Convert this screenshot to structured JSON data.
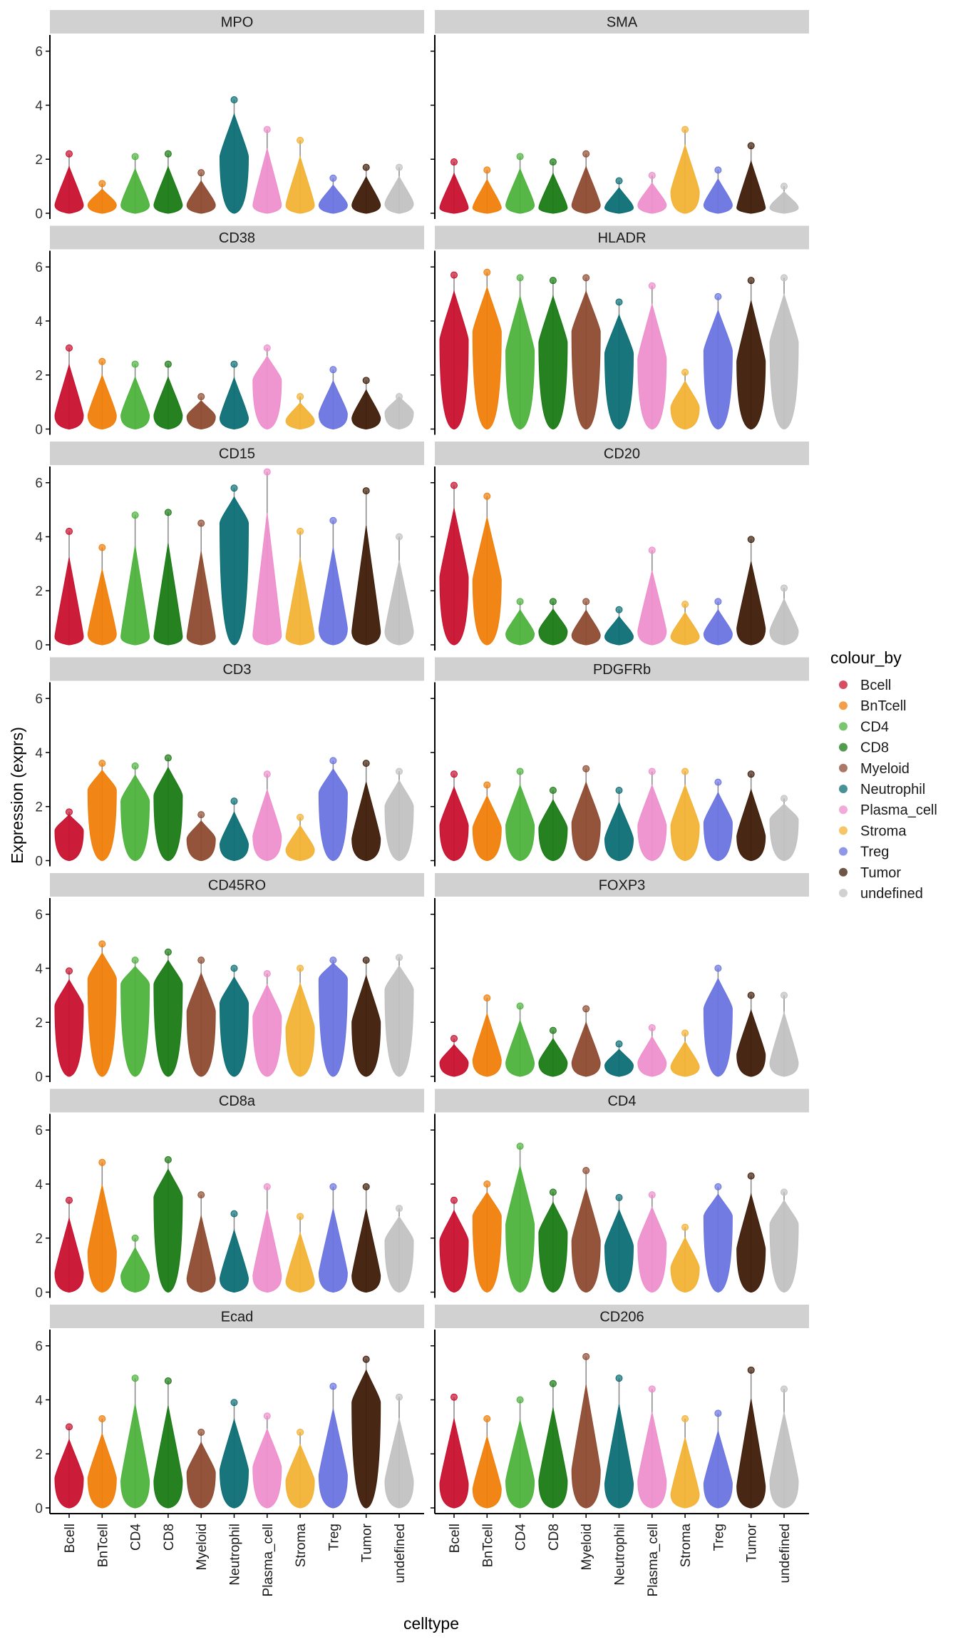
{
  "chart_data": {
    "type": "violin",
    "xlabel": "celltype",
    "ylabel": "Expression (exprs)",
    "legend_title": "colour_by",
    "legend_position": "right",
    "grid": false,
    "ylim": [
      0,
      6.6
    ],
    "y_ticks": [
      0,
      2,
      4,
      6
    ],
    "categories": [
      "Bcell",
      "BnTcell",
      "CD4",
      "CD8",
      "Myeloid",
      "Neutrophil",
      "Plasma_cell",
      "Stroma",
      "Treg",
      "Tumor",
      "undefined"
    ],
    "colors": [
      "#C8102E",
      "#F07F09",
      "#4DB33D",
      "#1A7A14",
      "#8E4B30",
      "#0B6E74",
      "#EE8FCC",
      "#F2B234",
      "#6A74E0",
      "#3E1C08",
      "#C2C2C2"
    ],
    "panels": [
      {
        "marker": "MPO",
        "medians": [
          0.3,
          0.3,
          0.3,
          0.3,
          0.3,
          2.1,
          0.3,
          0.3,
          0.3,
          0.3,
          0.35
        ],
        "maxima": [
          2.2,
          1.1,
          2.1,
          2.2,
          1.5,
          4.2,
          3.1,
          2.7,
          1.3,
          1.7,
          1.7
        ]
      },
      {
        "marker": "SMA",
        "medians": [
          0.2,
          0.2,
          0.3,
          0.2,
          0.3,
          0.2,
          0.3,
          0.8,
          0.3,
          0.2,
          0.2
        ],
        "maxima": [
          1.9,
          1.6,
          2.1,
          1.9,
          2.2,
          1.2,
          1.4,
          3.1,
          1.6,
          2.5,
          1.0
        ]
      },
      {
        "marker": "CD38",
        "medians": [
          0.5,
          0.5,
          0.5,
          0.5,
          0.45,
          0.4,
          1.8,
          0.3,
          0.55,
          0.4,
          0.6
        ],
        "maxima": [
          3.0,
          2.5,
          2.4,
          2.4,
          1.2,
          2.4,
          3.0,
          1.2,
          2.2,
          1.8,
          1.2
        ]
      },
      {
        "marker": "HLADR",
        "medians": [
          3.3,
          3.6,
          2.9,
          3.2,
          3.6,
          2.8,
          2.6,
          0.8,
          2.9,
          2.5,
          3.2
        ],
        "maxima": [
          5.7,
          5.8,
          5.6,
          5.5,
          5.6,
          4.7,
          5.3,
          2.1,
          4.9,
          5.5,
          5.6
        ]
      },
      {
        "marker": "CD15",
        "medians": [
          0.3,
          0.4,
          0.3,
          0.3,
          0.3,
          4.5,
          0.35,
          0.3,
          0.6,
          0.5,
          0.5
        ],
        "maxima": [
          4.2,
          3.6,
          4.8,
          4.9,
          4.5,
          5.8,
          6.4,
          4.2,
          4.6,
          5.7,
          4.0
        ]
      },
      {
        "marker": "CD20",
        "medians": [
          2.5,
          2.4,
          0.4,
          0.5,
          0.35,
          0.3,
          0.5,
          0.3,
          0.4,
          0.6,
          0.5
        ],
        "maxima": [
          5.9,
          5.5,
          1.6,
          1.6,
          1.6,
          1.3,
          3.5,
          1.5,
          1.6,
          3.9,
          2.1
        ]
      },
      {
        "marker": "CD3",
        "medians": [
          1.1,
          2.6,
          2.2,
          2.4,
          0.8,
          0.6,
          0.9,
          0.4,
          2.5,
          0.8,
          2.0
        ],
        "maxima": [
          1.8,
          3.6,
          3.5,
          3.8,
          1.7,
          2.2,
          3.2,
          1.6,
          3.7,
          3.6,
          3.3
        ]
      },
      {
        "marker": "PDGFRb",
        "medians": [
          1.3,
          1.2,
          1.3,
          1.2,
          1.4,
          0.8,
          1.3,
          1.3,
          1.4,
          0.9,
          1.5
        ],
        "maxima": [
          3.2,
          2.8,
          3.3,
          2.6,
          3.4,
          2.6,
          3.3,
          3.3,
          2.9,
          3.2,
          2.3
        ]
      },
      {
        "marker": "CD45RO",
        "medians": [
          2.6,
          3.6,
          3.4,
          3.4,
          2.4,
          2.7,
          2.2,
          1.8,
          3.6,
          2.0,
          3.2
        ],
        "maxima": [
          3.9,
          4.9,
          4.3,
          4.6,
          4.3,
          4.0,
          3.8,
          4.0,
          4.3,
          4.3,
          4.4
        ]
      },
      {
        "marker": "FOXP3",
        "medians": [
          0.5,
          0.6,
          0.5,
          0.5,
          0.5,
          0.4,
          0.5,
          0.35,
          2.5,
          0.8,
          0.5
        ],
        "maxima": [
          1.4,
          2.9,
          2.6,
          1.7,
          2.5,
          1.2,
          1.8,
          1.6,
          4.0,
          3.0,
          3.0
        ]
      },
      {
        "marker": "CD8a",
        "medians": [
          0.7,
          1.5,
          0.6,
          3.5,
          0.5,
          0.5,
          0.6,
          0.4,
          0.7,
          0.6,
          1.9
        ],
        "maxima": [
          3.4,
          4.8,
          2.0,
          4.9,
          3.6,
          2.9,
          3.9,
          2.8,
          3.9,
          3.9,
          3.1
        ]
      },
      {
        "marker": "CD4",
        "medians": [
          1.9,
          2.8,
          2.5,
          2.2,
          1.9,
          1.7,
          1.8,
          0.9,
          2.8,
          1.6,
          2.5
        ],
        "maxima": [
          3.4,
          4.0,
          5.4,
          3.7,
          4.5,
          3.5,
          3.6,
          2.4,
          3.9,
          4.3,
          3.7
        ]
      },
      {
        "marker": "Ecad",
        "medians": [
          1.1,
          1.1,
          1.0,
          1.0,
          1.3,
          1.4,
          1.5,
          1.0,
          1.2,
          3.9,
          1.0
        ],
        "maxima": [
          3.0,
          3.3,
          4.8,
          4.7,
          2.8,
          3.9,
          3.4,
          2.8,
          4.5,
          5.5,
          4.1
        ]
      },
      {
        "marker": "CD206",
        "medians": [
          0.9,
          0.7,
          1.0,
          1.0,
          1.4,
          0.9,
          1.0,
          0.5,
          0.9,
          0.8,
          1.0
        ],
        "maxima": [
          4.1,
          3.3,
          4.0,
          4.6,
          5.6,
          4.8,
          4.4,
          3.3,
          3.5,
          5.1,
          4.4
        ]
      }
    ]
  }
}
